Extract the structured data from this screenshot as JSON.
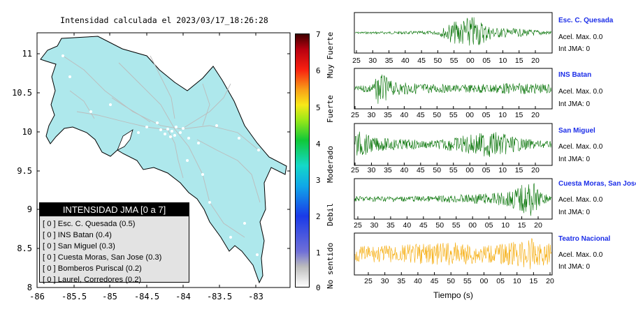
{
  "map": {
    "title": "Intensidad calculada el 2023/03/17_18:26:28",
    "y_ticks": [
      "11",
      "10.5",
      "10",
      "9.5",
      "9",
      "8.5",
      "8"
    ],
    "x_ticks": [
      "-86",
      "-85.5",
      "-85",
      "-84.5",
      "-84",
      "-83.5",
      "-83"
    ],
    "colors": {
      "land": "#aee8ec",
      "border": "#000000",
      "roads": "#c2c2c2"
    }
  },
  "colorbar": {
    "ticks": [
      "7",
      "6",
      "5",
      "4",
      "3",
      "2",
      "1",
      "0"
    ],
    "categories": [
      "Muy Fuerte",
      "Fuerte",
      "Moderado",
      "Debil",
      "No sentido"
    ]
  },
  "legend": {
    "title": "INTENSIDAD JMA [0 a 7]",
    "rows": [
      "[ 0 ]  Esc. C. Quesada (0.5)",
      "[ 0 ]  INS Batan (0.4)",
      "[ 0 ]  San Miguel (0.3)",
      "[ 0 ]  Cuesta Moras, San Jose (0.3)",
      "[ 0 ]  Bomberos Puriscal (0.2)",
      "[ 0 ]  Laurel, Corredores (0.2)"
    ]
  },
  "stations": [
    {
      "name": "Esc. C. Quesada",
      "accel": "Acel. Max. 0.0",
      "int": "Int JMA: 0",
      "color": "#007000"
    },
    {
      "name": "INS Batan",
      "accel": "Acel. Max. 0.0",
      "int": "Int JMA: 0",
      "color": "#007000"
    },
    {
      "name": "San Miguel",
      "accel": "Acel. Max. 0.0",
      "int": "Int JMA: 0",
      "color": "#007000"
    },
    {
      "name": "Cuesta Moras, San Jose",
      "accel": "Acel. Max. 0.0",
      "int": "Int JMA: 0",
      "color": "#007000"
    },
    {
      "name": "Teatro Nacional",
      "accel": "Acel. Max. 0.0",
      "int": "Int JMA: 0",
      "color": "#f5a800"
    }
  ],
  "time_ticks": {
    "standard": [
      "25",
      "30",
      "35",
      "40",
      "45",
      "50",
      "55",
      "00",
      "05",
      "10",
      "15",
      "20"
    ],
    "last": [
      "25",
      "30",
      "35",
      "40",
      "45",
      "50",
      "55",
      "00",
      "05",
      "10",
      "15",
      "20"
    ]
  },
  "x_axis_title": "Tiempo (s)"
}
